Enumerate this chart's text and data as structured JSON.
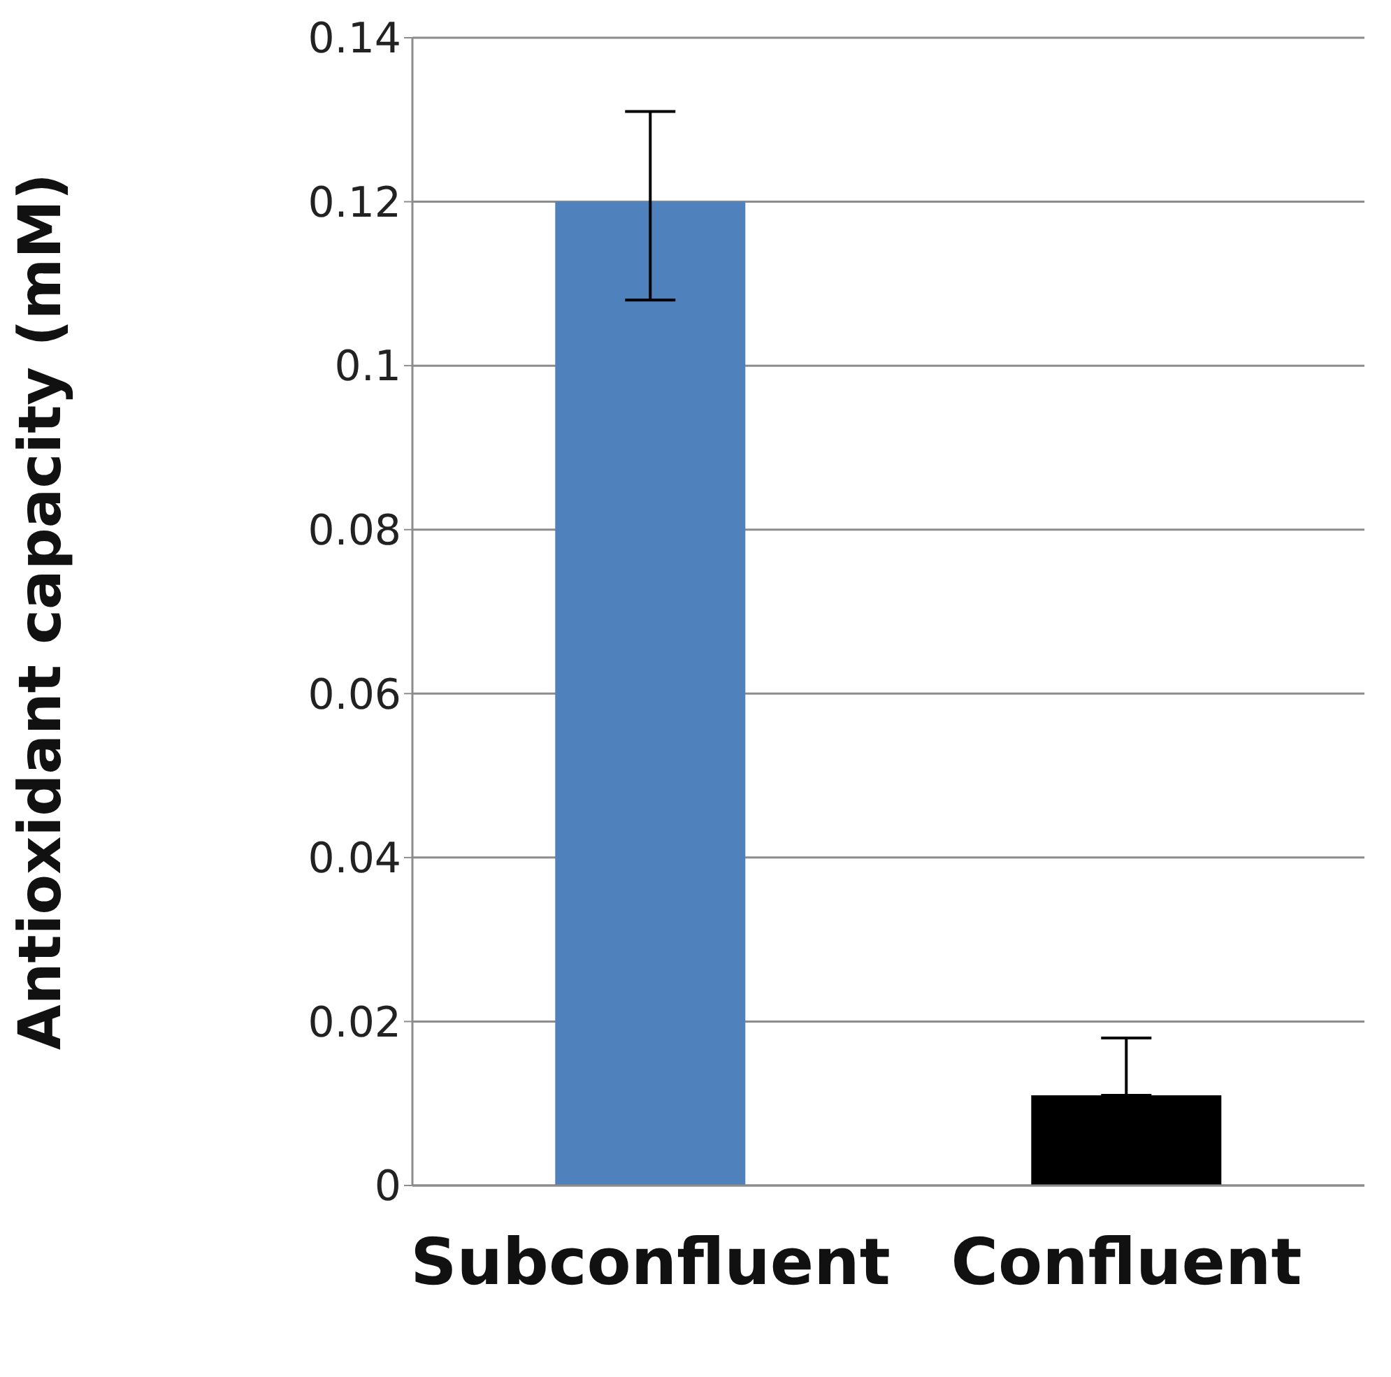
{
  "chart_data": {
    "type": "bar",
    "ylabel": "Antioxidant capacity (mM)",
    "categories": [
      "Subconfluent",
      "Confluent"
    ],
    "values": [
      0.12,
      0.011
    ],
    "colors": [
      "#4f81bd",
      "#000000"
    ],
    "errors": [
      [
        0.108,
        0.131
      ],
      [
        0.011,
        0.018
      ]
    ],
    "ylim": [
      0,
      0.14
    ],
    "yticks": [
      0,
      0.02,
      0.04,
      0.06,
      0.08,
      0.1,
      0.12,
      0.14
    ],
    "grid": "y"
  }
}
